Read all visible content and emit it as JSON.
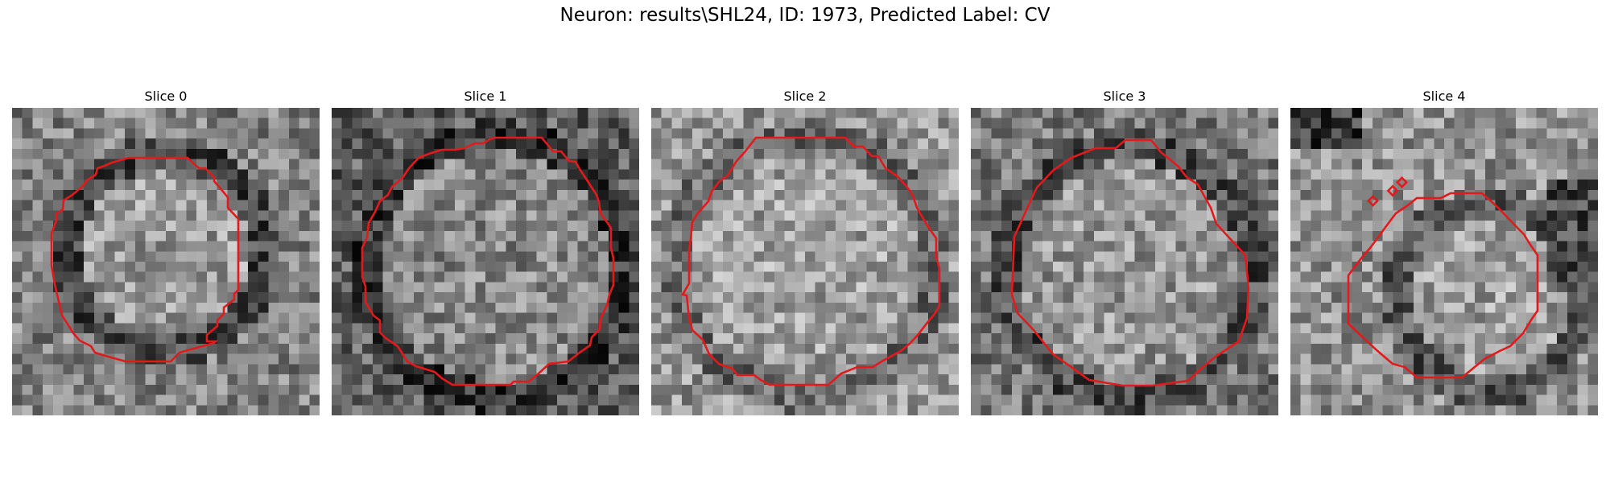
{
  "figure": {
    "title": "Neuron: results\\SHL24, ID: 1973, Predicted Label: CV",
    "contour_color": "#e31a1c",
    "colormap": "gray"
  },
  "panels": [
    {
      "title": "Slice 0"
    },
    {
      "title": "Slice 1"
    },
    {
      "title": "Slice 2"
    },
    {
      "title": "Slice 3"
    },
    {
      "title": "Slice 4"
    }
  ]
}
